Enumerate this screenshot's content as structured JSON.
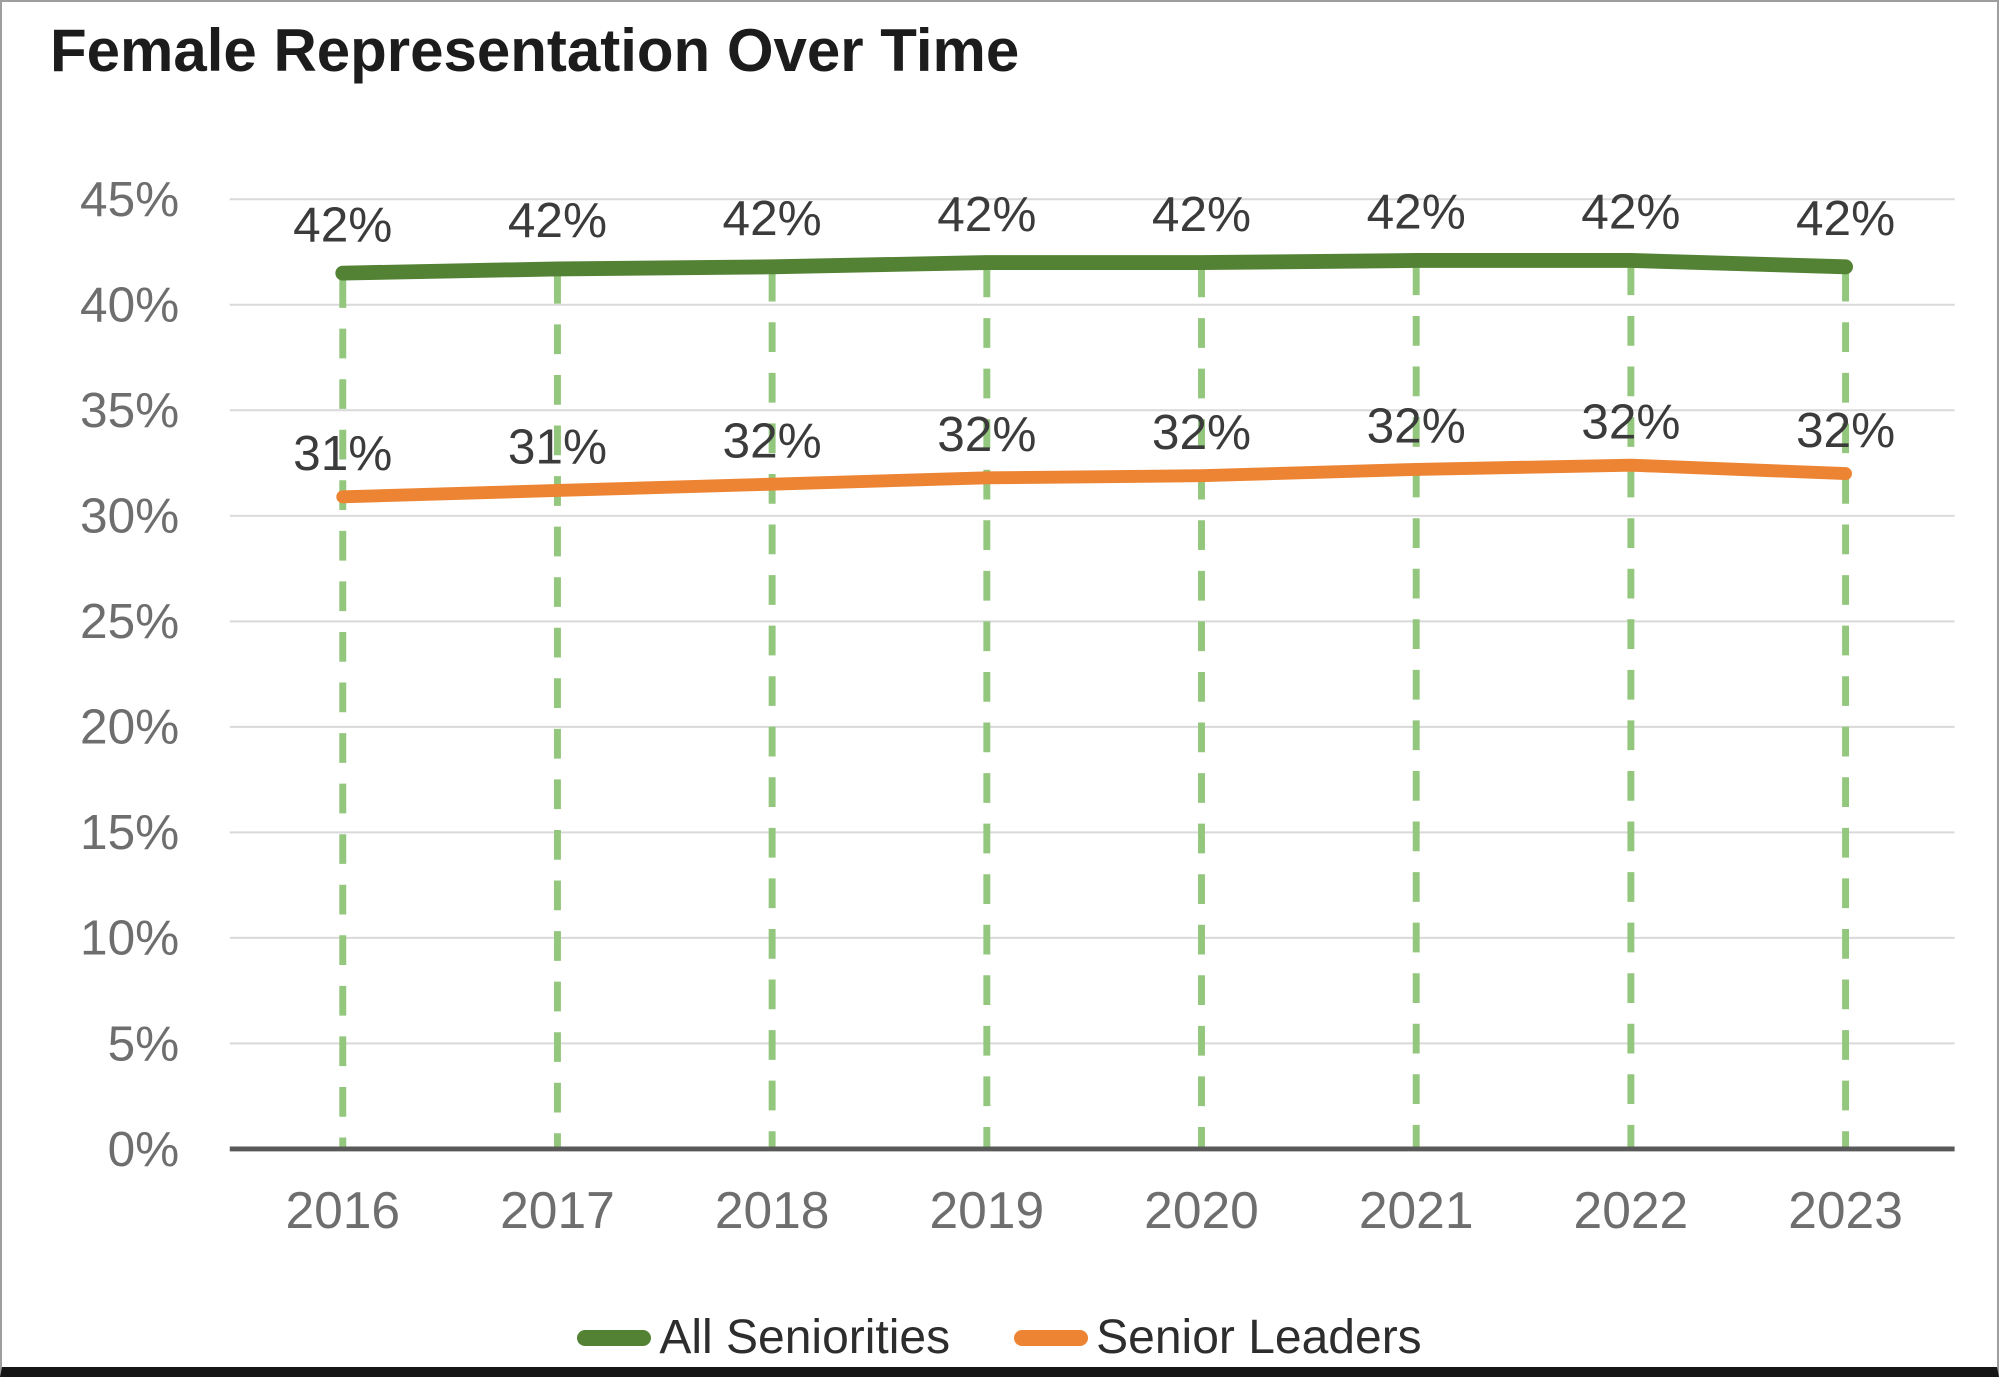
{
  "title": "Female Representation Over Time",
  "legend": [
    {
      "label": "All Seniorities",
      "color": "#548235"
    },
    {
      "label": "Senior Leaders",
      "color": "#EC8433"
    }
  ],
  "chart_data": {
    "type": "line",
    "title": "Female Representation Over Time",
    "categories": [
      "2016",
      "2017",
      "2018",
      "2019",
      "2020",
      "2021",
      "2022",
      "2023"
    ],
    "series": [
      {
        "name": "All Seniorities",
        "color": "#548235",
        "values": [
          42,
          42,
          42,
          42,
          42,
          42,
          42,
          42
        ],
        "values_precise": [
          41.5,
          41.7,
          41.8,
          42.0,
          42.0,
          42.1,
          42.1,
          41.8
        ],
        "labels": [
          "42%",
          "42%",
          "42%",
          "42%",
          "42%",
          "42%",
          "42%",
          "42%"
        ]
      },
      {
        "name": "Senior Leaders",
        "color": "#EC8433",
        "values": [
          31,
          31,
          32,
          32,
          32,
          32,
          32,
          32
        ],
        "values_precise": [
          30.9,
          31.2,
          31.5,
          31.8,
          31.9,
          32.2,
          32.4,
          32.0
        ],
        "labels": [
          "31%",
          "31%",
          "32%",
          "32%",
          "32%",
          "32%",
          "32%",
          "32%"
        ]
      }
    ],
    "xlabel": "",
    "ylabel": "",
    "ylim": [
      0,
      45
    ],
    "y_ticks": [
      "0%",
      "5%",
      "10%",
      "15%",
      "20%",
      "25%",
      "30%",
      "35%",
      "40%",
      "45%"
    ],
    "grid": true,
    "legend_position": "bottom",
    "guide_lines": "dashed vertical at each year",
    "guide_color": "#94C77E",
    "gridline_color": "#D9D9D9",
    "axis_color": "#595959",
    "tick_color": "#6E6E6E",
    "data_label_color": "#3B3B3B"
  }
}
